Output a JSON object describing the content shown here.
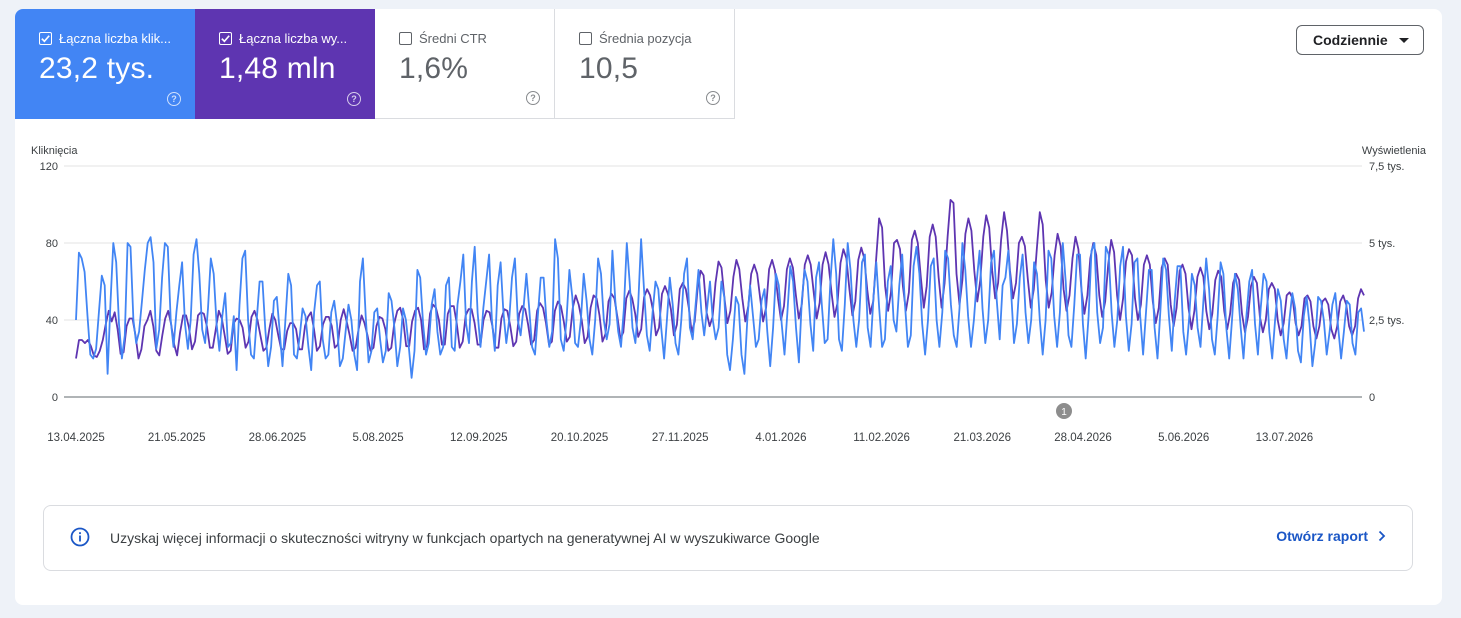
{
  "tiles": [
    {
      "label": "Łączna liczba klik...",
      "value": "23,2 tys.",
      "checked": true
    },
    {
      "label": "Łączna liczba wy...",
      "value": "1,48 mln",
      "checked": true
    },
    {
      "label": "Średni CTR",
      "value": "1,6%",
      "checked": false
    },
    {
      "label": "Średnia pozycja",
      "value": "10,5",
      "checked": false
    }
  ],
  "granularity": {
    "label": "Codziennie"
  },
  "banner": {
    "message": "Uzyskaj więcej informacji o skuteczności witryny w funkcjach opartych na generatywnej AI w wyszukiwarce Google",
    "link": "Otwórz raport"
  },
  "colors": {
    "clicks": "#4285f4",
    "impressions": "#5e35b1"
  },
  "chart_data": {
    "type": "line",
    "ylabel_left": "Kliknięcia",
    "ylabel_right": "Wyświetlenia",
    "yticks_left": [
      "0",
      "40",
      "80",
      "120"
    ],
    "yticks_right": [
      "0",
      "2,5 tys.",
      "5 tys.",
      "7,5 tys."
    ],
    "ylim_left": [
      0,
      120
    ],
    "ylim_right": [
      0,
      7500
    ],
    "x_ticks": [
      "13.04.2025",
      "21.05.2025",
      "28.06.2025",
      "5.08.2025",
      "12.09.2025",
      "20.10.2025",
      "27.11.2025",
      "4.01.2026",
      "11.02.2026",
      "21.03.2026",
      "28.04.2026",
      "5.06.2026",
      "13.07.2026"
    ],
    "annotation": {
      "label": "1",
      "date": "16.04.2026"
    },
    "grid": true,
    "series": [
      {
        "name": "Kliknięcia",
        "color": "#4285f4",
        "axis": "left",
        "values": [
          40,
          75,
          72,
          65,
          42,
          22,
          20,
          25,
          44,
          63,
          58,
          12,
          48,
          80,
          70,
          38,
          20,
          32,
          80,
          78,
          40,
          28,
          34,
          50,
          66,
          80,
          83,
          70,
          25,
          35,
          62,
          80,
          78,
          40,
          26,
          44,
          58,
          70,
          38,
          25,
          40,
          74,
          82,
          64,
          35,
          28,
          46,
          72,
          64,
          38,
          24,
          42,
          54,
          26,
          28,
          42,
          14,
          48,
          72,
          76,
          40,
          22,
          20,
          40,
          60,
          60,
          35,
          16,
          26,
          50,
          52,
          34,
          16,
          40,
          64,
          58,
          22,
          20,
          32,
          46,
          42,
          26,
          14,
          44,
          58,
          60,
          30,
          20,
          22,
          44,
          50,
          38,
          16,
          20,
          34,
          48,
          40,
          22,
          14,
          60,
          72,
          42,
          18,
          24,
          44,
          46,
          30,
          18,
          24,
          54,
          50,
          36,
          16,
          26,
          46,
          40,
          26,
          10,
          24,
          66,
          62,
          38,
          22,
          28,
          48,
          56,
          34,
          22,
          26,
          58,
          62,
          26,
          24,
          48,
          60,
          74,
          38,
          28,
          60,
          78,
          44,
          26,
          46,
          60,
          74,
          40,
          24,
          58,
          70,
          44,
          28,
          40,
          62,
          72,
          40,
          32,
          46,
          64,
          46,
          26,
          22,
          42,
          62,
          62,
          40,
          26,
          34,
          82,
          72,
          30,
          24,
          40,
          66,
          52,
          28,
          26,
          40,
          64,
          50,
          30,
          22,
          40,
          72,
          64,
          40,
          30,
          38,
          76,
          50,
          34,
          26,
          46,
          80,
          60,
          36,
          28,
          48,
          82,
          56,
          32,
          24,
          44,
          60,
          56,
          36,
          20,
          40,
          62,
          48,
          28,
          22,
          40,
          64,
          72,
          36,
          30,
          48,
          66,
          44,
          32,
          46,
          60,
          40,
          30,
          36,
          60,
          52,
          22,
          14,
          30,
          52,
          48,
          22,
          12,
          40,
          58,
          42,
          26,
          30,
          50,
          56,
          34,
          16,
          36,
          64,
          58,
          38,
          22,
          44,
          68,
          60,
          36,
          18,
          50,
          66,
          60,
          38,
          24,
          62,
          70,
          48,
          28,
          30,
          60,
          82,
          64,
          30,
          24,
          48,
          80,
          66,
          40,
          26,
          40,
          70,
          74,
          36,
          26,
          52,
          70,
          46,
          26,
          30,
          60,
          68,
          40,
          34,
          58,
          74,
          48,
          26,
          32,
          68,
          78,
          64,
          38,
          22,
          40,
          68,
          72,
          40,
          26,
          44,
          76,
          72,
          48,
          32,
          26,
          46,
          80,
          66,
          42,
          26,
          40,
          60,
          76,
          46,
          28,
          40,
          70,
          76,
          50,
          30,
          58,
          62,
          76,
          54,
          28,
          38,
          62,
          74,
          44,
          28,
          40,
          70,
          64,
          40,
          22,
          40,
          76,
          72,
          42,
          26,
          44,
          80,
          60,
          32,
          26,
          48,
          74,
          74,
          38,
          20,
          42,
          76,
          80,
          44,
          28,
          36,
          78,
          74,
          44,
          26,
          40,
          68,
          78,
          42,
          24,
          38,
          70,
          72,
          42,
          22,
          44,
          66,
          66,
          36,
          20,
          44,
          72,
          66,
          42,
          24,
          50,
          68,
          68,
          34,
          22,
          40,
          64,
          58,
          36,
          26,
          50,
          72,
          56,
          30,
          22,
          42,
          70,
          64,
          36,
          20,
          40,
          64,
          56,
          36,
          20,
          42,
          60,
          66,
          38,
          22,
          46,
          64,
          60,
          34,
          20,
          40,
          56,
          50,
          30,
          20,
          40,
          54,
          46,
          24,
          18,
          42,
          52,
          38,
          16,
          28,
          52,
          50,
          40,
          22,
          34,
          48,
          54,
          36,
          20,
          34,
          50,
          48,
          28,
          22,
          44,
          46,
          34
        ]
      },
      {
        "name": "Wyświetlenia",
        "color": "#5e35b1",
        "axis": "right",
        "values": [
          1250,
          1850,
          1850,
          1750,
          1850,
          1650,
          1350,
          1300,
          1500,
          1850,
          2350,
          2800,
          2450,
          2750,
          2200,
          1400,
          1450,
          2300,
          2550,
          2550,
          2000,
          1250,
          1550,
          2300,
          2500,
          2800,
          2300,
          1500,
          1350,
          2000,
          2550,
          2800,
          2350,
          1700,
          1350,
          2100,
          2650,
          2650,
          2250,
          1550,
          1800,
          2650,
          2750,
          2700,
          2300,
          1600,
          1600,
          2200,
          2800,
          2550,
          2000,
          1400,
          1500,
          2400,
          2550,
          2500,
          2250,
          1600,
          1800,
          2600,
          2800,
          2500,
          2000,
          1500,
          1600,
          2200,
          2700,
          2500,
          2000,
          1550,
          1550,
          2150,
          2400,
          2400,
          2200,
          1550,
          1550,
          2300,
          2600,
          2750,
          2200,
          1500,
          1650,
          2350,
          2600,
          2600,
          2300,
          1600,
          1700,
          2500,
          2850,
          2450,
          2000,
          1500,
          1600,
          2200,
          2650,
          2400,
          2000,
          1500,
          1600,
          2300,
          2600,
          2550,
          2200,
          1500,
          1600,
          2400,
          2800,
          2900,
          2500,
          1650,
          1650,
          2450,
          2800,
          2900,
          2500,
          1550,
          1650,
          2700,
          3000,
          2900,
          2500,
          1700,
          1700,
          2700,
          2950,
          2950,
          2400,
          1600,
          1800,
          2650,
          2850,
          2850,
          2400,
          1700,
          1700,
          2500,
          2800,
          2750,
          2300,
          1600,
          1600,
          2550,
          2850,
          2800,
          2300,
          1650,
          1800,
          2700,
          2950,
          2850,
          2350,
          1700,
          1850,
          2800,
          3050,
          2900,
          2400,
          1700,
          1800,
          2800,
          3100,
          2950,
          2450,
          1800,
          1950,
          2900,
          3300,
          3000,
          2500,
          1750,
          1950,
          2900,
          3300,
          3200,
          2650,
          1800,
          2050,
          3100,
          3350,
          3200,
          2600,
          1900,
          2100,
          3200,
          3450,
          3200,
          2700,
          1950,
          2200,
          3250,
          3500,
          3300,
          2800,
          2000,
          2250,
          3350,
          3600,
          3350,
          2850,
          2000,
          2350,
          3500,
          3700,
          3500,
          2900,
          2100,
          2450,
          3550,
          4100,
          3950,
          2750,
          2300,
          2600,
          3700,
          4400,
          4200,
          3200,
          2400,
          2800,
          3900,
          4450,
          4150,
          3200,
          2450,
          2950,
          4000,
          4300,
          4000,
          3200,
          2450,
          2900,
          4150,
          4450,
          4100,
          3200,
          2500,
          2950,
          4150,
          4500,
          4200,
          3300,
          2550,
          3000,
          4300,
          4600,
          4300,
          3400,
          2550,
          3050,
          4300,
          4700,
          4300,
          3400,
          2600,
          3050,
          4350,
          4800,
          4500,
          3500,
          2650,
          3100,
          4450,
          4850,
          4500,
          3500,
          2700,
          3100,
          4500,
          5800,
          5500,
          3600,
          2800,
          3400,
          5000,
          5100,
          4800,
          3600,
          2800,
          3400,
          5100,
          5400,
          5000,
          3900,
          2900,
          3600,
          5200,
          5600,
          5200,
          3900,
          2900,
          3700,
          5200,
          6400,
          6300,
          4000,
          3000,
          3800,
          5300,
          5800,
          5400,
          4100,
          3100,
          3800,
          5200,
          5900,
          5500,
          4100,
          3200,
          3700,
          5100,
          6000,
          5400,
          4100,
          3200,
          3700,
          5000,
          5200,
          4900,
          3800,
          2900,
          3500,
          4800,
          6000,
          5600,
          3800,
          2900,
          3400,
          4600,
          5300,
          4900,
          3500,
          2800,
          3300,
          4500,
          5200,
          4800,
          3500,
          2700,
          3300,
          4500,
          5000,
          4600,
          3300,
          2600,
          3100,
          4300,
          5100,
          4700,
          3300,
          2500,
          3200,
          4400,
          4800,
          4600,
          3200,
          2500,
          3000,
          4300,
          4600,
          4300,
          3100,
          2400,
          2900,
          4200,
          4500,
          4300,
          3000,
          2300,
          2900,
          4100,
          4300,
          4000,
          2900,
          2200,
          2800,
          3900,
          4200,
          3900,
          2800,
          2200,
          2700,
          3800,
          4100,
          3900,
          2800,
          2200,
          2700,
          3700,
          4000,
          3800,
          2700,
          2100,
          2600,
          3600,
          3900,
          3700,
          2600,
          2100,
          2500,
          3500,
          3700,
          3500,
          2500,
          2000,
          2400,
          3300,
          3400,
          3200,
          2400,
          2000,
          2300,
          3200,
          3300,
          3100,
          2300,
          1900,
          2300,
          3100,
          3200,
          3000,
          2200,
          1900,
          2300,
          3100,
          3300,
          3000,
          2300,
          2000,
          2300,
          3200,
          3500,
          3300
        ]
      }
    ]
  }
}
